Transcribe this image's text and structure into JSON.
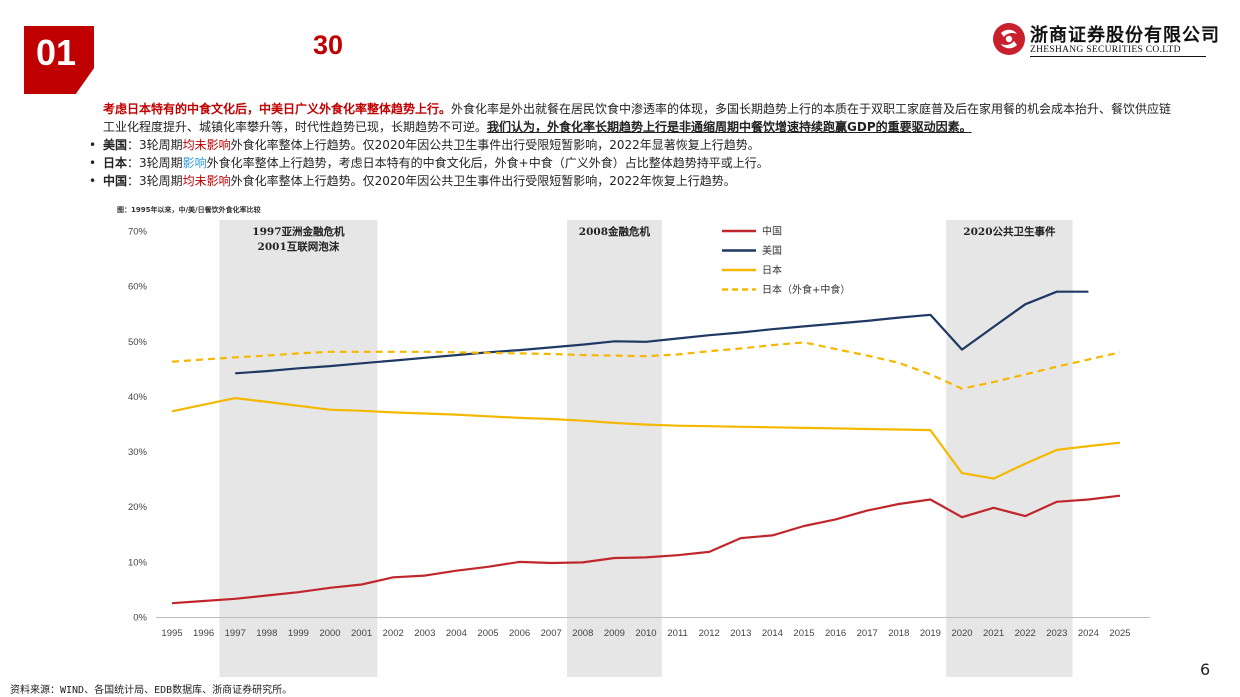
{
  "header": {
    "section_number": "01",
    "title": "30",
    "logo": {
      "cn": "浙商证券股份有限公司",
      "en": "ZHESHANG SECURITIES CO.LTD",
      "icon": "zheshang-logo-icon",
      "color": "#c8202c"
    }
  },
  "body": {
    "lead_bold": "考虑日本特有的中食文化后，中美日广义外食化率整体趋势上行。",
    "lead_text": "外食化率是外出就餐在居民饮食中渗透率的体现，多国长期趋势上行的本质在于双职工家庭普及后在家用餐的机会成本抬升、餐饮供应链工业化程度提升、城镇化率攀升等，时代性趋势已现，长期趋势不可逆。",
    "lead_conclusion": "我们认为，外食化率长期趋势上行是非通缩周期中餐饮增速持续跑赢GDP的重要驱动因素。",
    "bullets": [
      {
        "country": "美国",
        "pre": "：3轮周期",
        "hl": "均未影响",
        "post": "外食化率整体上行趋势。仅2020年因公共卫生事件出行受限短暂影响，2022年显著恢复上行趋势。"
      },
      {
        "country": "日本",
        "pre": "：3轮周期",
        "hl": "影响",
        "post": "外食化率整体上行趋势，考虑日本特有的中食文化后，外食+中食（广义外食）占比整体趋势持平或上行。"
      },
      {
        "country": "中国",
        "pre": "：3轮周期",
        "hl": "均未影响",
        "post": "外食化率整体上行趋势。仅2020年因公共卫生事件出行受限短暂影响，2022年恢复上行趋势。"
      }
    ]
  },
  "figure": {
    "caption": "图：1995年以来，中/美/日餐饮外食化率比较"
  },
  "chart_data": {
    "type": "line",
    "x": [
      1995,
      1996,
      1997,
      1998,
      1999,
      2000,
      2001,
      2002,
      2003,
      2004,
      2005,
      2006,
      2007,
      2008,
      2009,
      2010,
      2011,
      2012,
      2013,
      2014,
      2015,
      2016,
      2017,
      2018,
      2019,
      2020,
      2021,
      2022,
      2023,
      2024,
      2025
    ],
    "y_ticks": [
      "0%",
      "10%",
      "20%",
      "30%",
      "40%",
      "50%",
      "60%",
      "70%"
    ],
    "ylim": [
      0,
      70
    ],
    "xlabel": "",
    "ylabel": "",
    "legend_position": "top-center",
    "crisis_bands": [
      {
        "start": 1996,
        "end": 2001,
        "labels": [
          "1997亚洲金融危机",
          "2001互联网泡沫"
        ]
      },
      {
        "start": 2007,
        "end": 2010,
        "labels": [
          "2008金融危机"
        ]
      },
      {
        "start": 2019,
        "end": 2023,
        "labels": [
          "2020公共卫生事件"
        ]
      }
    ],
    "series": [
      {
        "name": "中国",
        "color": "#c0272d",
        "dash": false,
        "values": [
          2.5,
          2.9,
          3.3,
          3.9,
          4.5,
          5.3,
          5.9,
          7.2,
          7.5,
          8.4,
          9.1,
          10.0,
          9.8,
          9.9,
          10.7,
          10.8,
          11.2,
          11.8,
          14.3,
          14.8,
          16.5,
          17.7,
          19.3,
          20.5,
          21.3,
          18.1,
          19.8,
          18.3,
          20.9,
          21.3,
          22.0
        ]
      },
      {
        "name": "美国",
        "color": "#1f3864",
        "dash": false,
        "values": [
          null,
          null,
          44.2,
          44.6,
          45.1,
          45.5,
          46.0,
          46.5,
          47.0,
          47.5,
          48.0,
          48.4,
          48.9,
          49.4,
          50.0,
          49.9,
          50.5,
          51.1,
          51.6,
          52.2,
          52.7,
          53.2,
          53.7,
          54.3,
          54.8,
          48.5,
          52.6,
          56.7,
          59.0,
          59.0,
          null
        ]
      },
      {
        "name": "日本",
        "color": "#f5b800",
        "dash": false,
        "values": [
          37.3,
          38.5,
          39.7,
          39.0,
          38.3,
          37.6,
          37.4,
          37.1,
          36.9,
          36.7,
          36.4,
          36.1,
          35.9,
          35.6,
          35.2,
          34.9,
          34.7,
          34.6,
          34.5,
          34.4,
          34.3,
          34.2,
          34.1,
          34.0,
          33.9,
          26.1,
          25.1,
          27.8,
          30.3,
          31.0,
          31.6
        ]
      },
      {
        "name": "日本（外食+中食）",
        "color": "#f5b800",
        "dash": true,
        "values": [
          46.3,
          46.7,
          47.1,
          47.4,
          47.8,
          48.1,
          48.1,
          48.1,
          48.1,
          48.0,
          47.9,
          47.8,
          47.7,
          47.5,
          47.4,
          47.3,
          47.6,
          48.2,
          48.7,
          49.3,
          49.8,
          48.6,
          47.4,
          46.1,
          44.0,
          41.4,
          42.6,
          44.0,
          45.4,
          46.7,
          48.0
        ]
      }
    ]
  },
  "footer": {
    "source": "资料来源：WIND、各国统计局、EDB数据库、浙商证券研究所。",
    "page_number": "6"
  }
}
